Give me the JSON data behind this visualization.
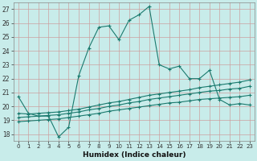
{
  "title": "",
  "xlabel": "Humidex (Indice chaleur)",
  "xlim": [
    -0.5,
    23.5
  ],
  "ylim": [
    17.5,
    27.5
  ],
  "xticks": [
    0,
    1,
    2,
    3,
    4,
    5,
    6,
    7,
    8,
    9,
    10,
    11,
    12,
    13,
    14,
    15,
    16,
    17,
    18,
    19,
    20,
    21,
    22,
    23
  ],
  "yticks": [
    18,
    19,
    20,
    21,
    22,
    23,
    24,
    25,
    26,
    27
  ],
  "background_color": "#c8ecea",
  "grid_color": "#b0b0b0",
  "line_color": "#1a7a6e",
  "line1_y": [
    20.7,
    19.5,
    19.3,
    19.3,
    17.8,
    18.5,
    22.2,
    24.2,
    25.7,
    25.8,
    24.8,
    26.2,
    26.6,
    27.2,
    23.0,
    22.7,
    22.9,
    22.0,
    22.0,
    22.6,
    20.5,
    20.1,
    20.2,
    20.1
  ],
  "line2_y": [
    19.5,
    19.45,
    19.5,
    19.55,
    19.6,
    19.7,
    19.8,
    19.95,
    20.1,
    20.25,
    20.35,
    20.5,
    20.65,
    20.8,
    20.9,
    21.0,
    21.1,
    21.2,
    21.35,
    21.45,
    21.55,
    21.65,
    21.75,
    21.9
  ],
  "line3_y": [
    19.2,
    19.25,
    19.3,
    19.35,
    19.4,
    19.5,
    19.6,
    19.75,
    19.85,
    20.0,
    20.1,
    20.25,
    20.35,
    20.5,
    20.6,
    20.7,
    20.8,
    20.9,
    21.0,
    21.1,
    21.15,
    21.25,
    21.3,
    21.45
  ],
  "line4_y": [
    18.9,
    18.95,
    19.0,
    19.05,
    19.1,
    19.2,
    19.3,
    19.4,
    19.5,
    19.65,
    19.75,
    19.85,
    19.95,
    20.05,
    20.15,
    20.25,
    20.3,
    20.4,
    20.5,
    20.55,
    20.6,
    20.65,
    20.7,
    20.8
  ],
  "markersize": 3,
  "linewidth": 0.8,
  "xtick_fontsize": 5,
  "ytick_fontsize": 5.5,
  "xlabel_fontsize": 6.5
}
